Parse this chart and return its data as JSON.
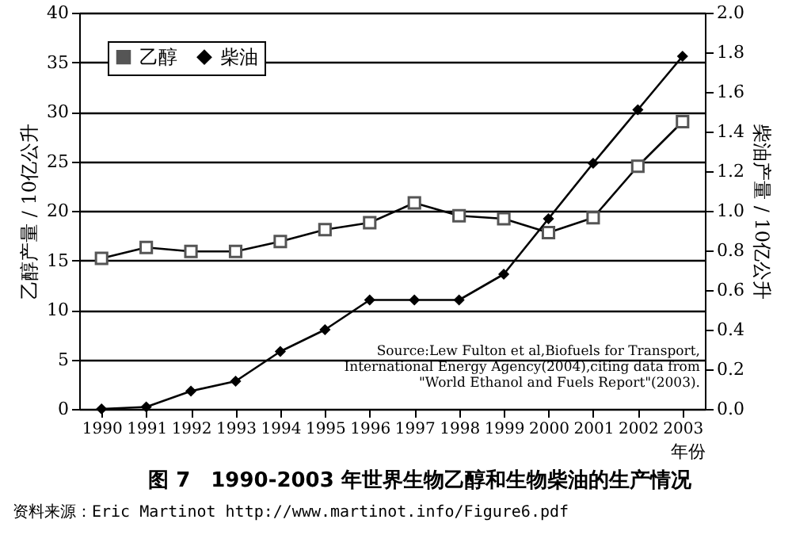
{
  "chart_data": {
    "type": "line",
    "title": "图 7　1990-2003 年世界生物乙醇和生物柴油的生产情况",
    "xlabel": "年份",
    "ylabel": "乙醇产量 / 10亿公升",
    "y2label": "柴油产量 / 10亿公升",
    "categories": [
      "1990",
      "1991",
      "1992",
      "1993",
      "1994",
      "1995",
      "1996",
      "1997",
      "1998",
      "1999",
      "2000",
      "2001",
      "2002",
      "2003"
    ],
    "series": [
      {
        "name": "乙醇",
        "color": "#555555",
        "marker": "square",
        "values": [
          15.2,
          16.3,
          15.9,
          15.9,
          16.9,
          18.1,
          18.8,
          20.8,
          19.5,
          19.2,
          17.8,
          19.3,
          24.5,
          29.0
        ]
      },
      {
        "name": "柴油",
        "color": "#000000",
        "marker": "diamond",
        "axis": "y2",
        "values": [
          0.0,
          0.01,
          0.09,
          0.14,
          0.29,
          0.4,
          0.55,
          0.55,
          0.55,
          0.68,
          0.96,
          1.24,
          1.51,
          1.78
        ]
      }
    ],
    "ylim": [
      0,
      40
    ],
    "yticks": [
      0,
      5,
      10,
      15,
      20,
      25,
      30,
      35,
      40
    ],
    "y2lim": [
      0,
      2.0
    ],
    "y2ticks": [
      {
        "value": 0,
        "label": "0.0"
      },
      {
        "value": 0.2,
        "label": "0.2"
      },
      {
        "value": 0.4,
        "label": "0.4"
      },
      {
        "value": 0.6,
        "label": "0.6"
      },
      {
        "value": 0.8,
        "label": "0.8"
      },
      {
        "value": 1.0,
        "label": "1.0"
      },
      {
        "value": 1.2,
        "label": "1.2"
      },
      {
        "value": 1.4,
        "label": "1.4"
      },
      {
        "value": 1.6,
        "label": "1.6"
      },
      {
        "value": 1.8,
        "label": "1.8"
      },
      {
        "value": 2.0,
        "label": "2.0"
      }
    ],
    "grid": "y",
    "legend": "top left",
    "annotations": [
      "Source:Lew Fulton et al,Biofuels for Transport,",
      "International Energy Agency(2004),citing data from",
      "\"World Ethanol and Fuels Report\"(2003).",
      "资料来源：Eric Martinot http://www.martinot.info/Figure6.pdf"
    ]
  }
}
